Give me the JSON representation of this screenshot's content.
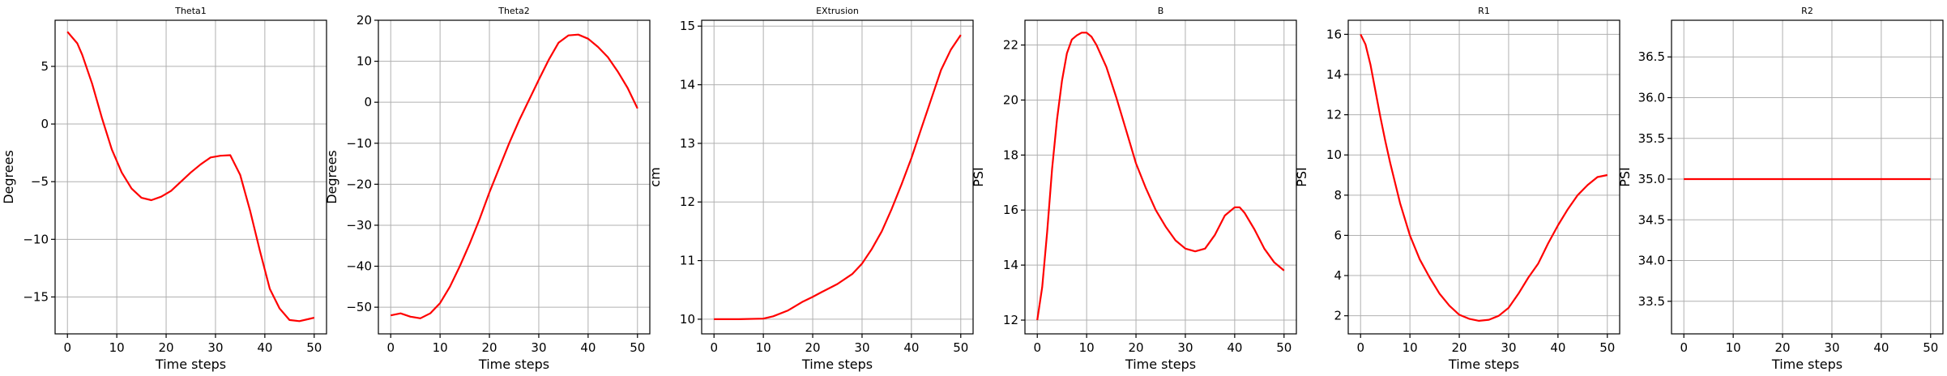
{
  "chart_data": [
    {
      "type": "line",
      "title": "Theta1",
      "xlabel": "Time steps",
      "ylabel": "Degrees",
      "xlim": [
        -2.5,
        52.5
      ],
      "ylim": [
        -18.2,
        9.0
      ],
      "xticks": [
        0,
        10,
        20,
        30,
        40,
        50
      ],
      "yticks": [
        -15,
        -10,
        -5,
        0,
        5
      ],
      "yticklabels": [
        "−15",
        "−10",
        "−5",
        "0",
        "5"
      ],
      "grid": true,
      "color": "#ff0000",
      "x": [
        0,
        2,
        3,
        5,
        7,
        9,
        11,
        13,
        15,
        17,
        19,
        21,
        23,
        25,
        27,
        29,
        31,
        33,
        35,
        37,
        39,
        41,
        43,
        45,
        47,
        49,
        50
      ],
      "y": [
        8,
        7,
        6,
        3.5,
        0.5,
        -2.2,
        -4.2,
        -5.6,
        -6.4,
        -6.6,
        -6.3,
        -5.8,
        -5.0,
        -4.2,
        -3.5,
        -2.9,
        -2.75,
        -2.7,
        -4.4,
        -7.5,
        -11.0,
        -14.3,
        -16.0,
        -17.0,
        -17.1,
        -16.9,
        -16.8
      ]
    },
    {
      "type": "line",
      "title": "Theta2",
      "xlabel": "Time steps",
      "ylabel": "Degrees",
      "xlim": [
        -2.5,
        52.5
      ],
      "ylim": [
        -56.5,
        20.0
      ],
      "xticks": [
        0,
        10,
        20,
        30,
        40,
        50
      ],
      "yticks": [
        -50,
        -40,
        -30,
        -20,
        -10,
        0,
        10,
        20
      ],
      "yticklabels": [
        "−50",
        "−40",
        "−30",
        "−20",
        "−10",
        "0",
        "10",
        "20"
      ],
      "grid": true,
      "color": "#ff0000",
      "x": [
        0,
        2,
        4,
        6,
        8,
        10,
        12,
        14,
        16,
        18,
        20,
        22,
        24,
        26,
        28,
        30,
        32,
        34,
        36,
        38,
        40,
        42,
        44,
        46,
        48,
        50
      ],
      "y": [
        -52,
        -51.5,
        -52.3,
        -52.7,
        -51.5,
        -49,
        -45,
        -40,
        -34.5,
        -28.5,
        -22,
        -16,
        -10,
        -4.5,
        0.5,
        5.5,
        10.3,
        14.5,
        16.3,
        16.5,
        15.5,
        13.5,
        11,
        7.5,
        3.5,
        -1.5
      ]
    },
    {
      "type": "line",
      "title": "EXtrusion",
      "xlabel": "Time steps",
      "ylabel": "cm",
      "xlim": [
        -2.5,
        52.5
      ],
      "ylim": [
        9.75,
        15.1
      ],
      "xticks": [
        0,
        10,
        20,
        30,
        40,
        50
      ],
      "yticks": [
        10,
        11,
        12,
        13,
        14,
        15
      ],
      "yticklabels": [
        "10",
        "11",
        "12",
        "13",
        "14",
        "15"
      ],
      "grid": true,
      "color": "#ff0000",
      "x": [
        0,
        5,
        10,
        12,
        15,
        18,
        20,
        22,
        25,
        28,
        30,
        32,
        34,
        36,
        38,
        40,
        42,
        44,
        46,
        48,
        50
      ],
      "y": [
        10,
        10,
        10.01,
        10.05,
        10.15,
        10.3,
        10.38,
        10.47,
        10.6,
        10.77,
        10.95,
        11.2,
        11.5,
        11.88,
        12.3,
        12.75,
        13.25,
        13.75,
        14.25,
        14.6,
        14.85
      ]
    },
    {
      "type": "line",
      "title": "B",
      "xlabel": "Time steps",
      "ylabel": "PSI",
      "xlim": [
        -2.5,
        52.5
      ],
      "ylim": [
        11.5,
        22.9
      ],
      "xticks": [
        0,
        10,
        20,
        30,
        40,
        50
      ],
      "yticks": [
        12,
        14,
        16,
        18,
        20,
        22
      ],
      "yticklabels": [
        "12",
        "14",
        "16",
        "18",
        "20",
        "22"
      ],
      "grid": true,
      "color": "#ff0000",
      "x": [
        0,
        1,
        2,
        3,
        4,
        5,
        6,
        7,
        8,
        9,
        10,
        11,
        12,
        14,
        16,
        18,
        20,
        22,
        24,
        26,
        28,
        30,
        32,
        34,
        36,
        38,
        40,
        41,
        42,
        44,
        46,
        48,
        50
      ],
      "y": [
        12,
        13.2,
        15.2,
        17.5,
        19.3,
        20.7,
        21.7,
        22.2,
        22.35,
        22.45,
        22.45,
        22.3,
        22.0,
        21.2,
        20.1,
        18.9,
        17.7,
        16.8,
        16.0,
        15.4,
        14.9,
        14.6,
        14.5,
        14.6,
        15.1,
        15.8,
        16.1,
        16.1,
        15.9,
        15.3,
        14.6,
        14.1,
        13.8
      ]
    },
    {
      "type": "line",
      "title": "R1",
      "xlabel": "Time steps",
      "ylabel": "PSI",
      "xlim": [
        -2.5,
        52.5
      ],
      "ylim": [
        1.1,
        16.7
      ],
      "xticks": [
        0,
        10,
        20,
        30,
        40,
        50
      ],
      "yticks": [
        2,
        4,
        6,
        8,
        10,
        12,
        14,
        16
      ],
      "yticklabels": [
        "2",
        "4",
        "6",
        "8",
        "10",
        "12",
        "14",
        "16"
      ],
      "grid": true,
      "color": "#ff0000",
      "x": [
        0,
        1,
        2,
        3,
        4,
        5,
        6,
        8,
        10,
        12,
        14,
        16,
        18,
        20,
        22,
        24,
        26,
        28,
        30,
        32,
        34,
        36,
        38,
        40,
        42,
        44,
        46,
        48,
        50
      ],
      "y": [
        16,
        15.5,
        14.5,
        13.2,
        11.9,
        10.7,
        9.6,
        7.6,
        6.0,
        4.8,
        3.9,
        3.1,
        2.5,
        2.05,
        1.85,
        1.75,
        1.8,
        2.0,
        2.4,
        3.1,
        3.9,
        4.6,
        5.6,
        6.5,
        7.3,
        8.0,
        8.5,
        8.9,
        9.0
      ]
    },
    {
      "type": "line",
      "title": "R2",
      "xlabel": "Time steps",
      "ylabel": "PSI",
      "xlim": [
        -2.5,
        52.5
      ],
      "ylim": [
        33.1,
        36.95
      ],
      "xticks": [
        0,
        10,
        20,
        30,
        40,
        50
      ],
      "yticks": [
        33.5,
        34.0,
        34.5,
        35.0,
        35.5,
        36.0,
        36.5
      ],
      "yticklabels": [
        "33.5",
        "34.0",
        "34.5",
        "35.0",
        "35.5",
        "36.0",
        "36.5"
      ],
      "grid": true,
      "color": "#ff0000",
      "x": [
        0,
        50
      ],
      "y": [
        35,
        35
      ]
    }
  ]
}
